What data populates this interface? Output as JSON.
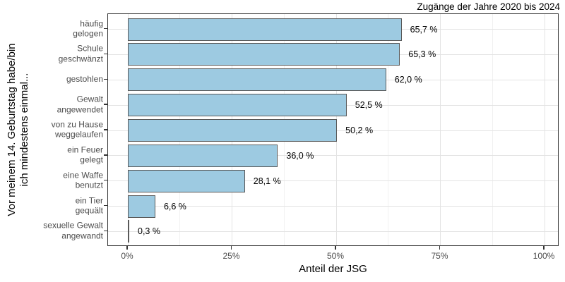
{
  "title": "Zugänge der Jahre 2020 bis 2024",
  "chart_data": {
    "type": "bar",
    "orientation": "horizontal",
    "title": "Zugänge der Jahre 2020 bis 2024",
    "xlabel": "Anteil der JSG",
    "ylabel_lines": [
      "Vor meinem 14. Geburtstag habe/bin",
      "ich mindestens einmal..."
    ],
    "categories": [
      "häufig gelogen",
      "Schule geschwänzt",
      "gestohlen",
      "Gewalt angewendet",
      "von zu Hause weggelaufen",
      "ein Feuer gelegt",
      "eine Waffe benutzt",
      "ein Tier gequält",
      "sexuelle Gewalt angewandt"
    ],
    "category_label_lines": [
      [
        "häufig",
        "gelogen"
      ],
      [
        "Schule",
        "geschwänzt"
      ],
      [
        "gestohlen"
      ],
      [
        "Gewalt",
        "angewendet"
      ],
      [
        "von zu Hause",
        "weggelaufen"
      ],
      [
        "ein Feuer",
        "gelegt"
      ],
      [
        "eine Waffe",
        "benutzt"
      ],
      [
        "ein Tier",
        "gequält"
      ],
      [
        "sexuelle Gewalt",
        "angewandt"
      ]
    ],
    "values": [
      65.7,
      65.3,
      62.0,
      52.5,
      50.2,
      36.0,
      28.1,
      6.6,
      0.3
    ],
    "value_labels": [
      "65,7 %",
      "65,3 %",
      "62,0 %",
      "52,5 %",
      "50,2 %",
      "36,0 %",
      "28,1 %",
      "6,6 %",
      "0,3 %"
    ],
    "x_tick_labels": [
      "0%",
      "25%",
      "50%",
      "75%",
      "100%"
    ],
    "x_tick_values": [
      0,
      25,
      50,
      75,
      100
    ],
    "x_minor_tick_values": [
      12.5,
      37.5,
      62.5,
      87.5
    ],
    "xlim": [
      0,
      100
    ],
    "grid": true,
    "legend": "none",
    "colors": {
      "bar_fill": "#9DCAE1",
      "bar_border": "#595959",
      "grid_major": "#e3e3e3",
      "grid_minor": "#f1f1f1",
      "panel_border": "#333333",
      "axis_text": "#4d4d4d",
      "text": "#000000",
      "background": "#ffffff"
    }
  }
}
